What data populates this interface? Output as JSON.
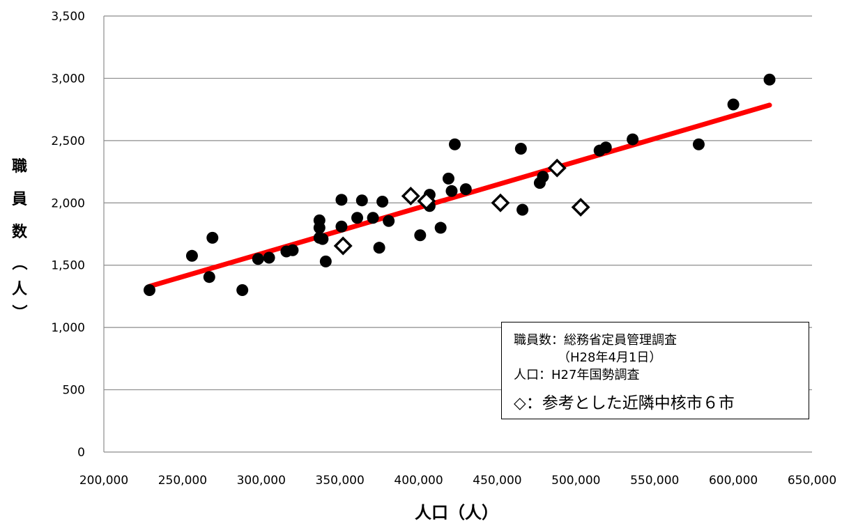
{
  "chart_data": {
    "type": "scatter",
    "title": "",
    "xlabel": "人口（人）",
    "ylabel": [
      "職",
      "員",
      "数",
      "（",
      "人",
      "）"
    ],
    "xlim": [
      200000,
      650000
    ],
    "ylim": [
      0,
      3500
    ],
    "x_ticks": [
      "200,000",
      "250,000",
      "300,000",
      "350,000",
      "400,000",
      "450,000",
      "500,000",
      "550,000",
      "600,000",
      "650,000"
    ],
    "y_ticks": [
      "0",
      "500",
      "1,000",
      "1,500",
      "2,000",
      "2,500",
      "3,000",
      "3,500"
    ],
    "grid": "horizontal",
    "series": [
      {
        "marker": "filled-circle",
        "color": "#000000",
        "points": [
          [
            229000,
            1300
          ],
          [
            256000,
            1575
          ],
          [
            267000,
            1405
          ],
          [
            269000,
            1720
          ],
          [
            288000,
            1300
          ],
          [
            298000,
            1550
          ],
          [
            305000,
            1560
          ],
          [
            316000,
            1610
          ],
          [
            320000,
            1620
          ],
          [
            337000,
            1800
          ],
          [
            337000,
            1860
          ],
          [
            337000,
            1720
          ],
          [
            339000,
            1710
          ],
          [
            341000,
            1530
          ],
          [
            351000,
            2025
          ],
          [
            351000,
            1810
          ],
          [
            361000,
            1880
          ],
          [
            364000,
            2020
          ],
          [
            371000,
            1880
          ],
          [
            375000,
            1640
          ],
          [
            377000,
            2010
          ],
          [
            381000,
            1855
          ],
          [
            401000,
            1740
          ],
          [
            407000,
            2065
          ],
          [
            407000,
            1975
          ],
          [
            414000,
            1800
          ],
          [
            419000,
            2195
          ],
          [
            421000,
            2095
          ],
          [
            423000,
            2470
          ],
          [
            430000,
            2110
          ],
          [
            465000,
            2435
          ],
          [
            466000,
            1945
          ],
          [
            477000,
            2160
          ],
          [
            479000,
            2210
          ],
          [
            515000,
            2420
          ],
          [
            519000,
            2445
          ],
          [
            536000,
            2510
          ],
          [
            578000,
            2470
          ],
          [
            600000,
            2790
          ],
          [
            623000,
            2990
          ]
        ]
      },
      {
        "name": "参考とした近隣中核市６市",
        "marker": "open-diamond",
        "color": "#000000",
        "points": [
          [
            352000,
            1655
          ],
          [
            395000,
            2055
          ],
          [
            405000,
            2015
          ],
          [
            452000,
            2000
          ],
          [
            488000,
            2280
          ],
          [
            503000,
            1965
          ]
        ]
      }
    ],
    "trendline": {
      "color": "#ff0000",
      "from": [
        229000,
        1330
      ],
      "to": [
        623000,
        2785
      ]
    }
  },
  "legend": {
    "line1": "職員数：総務省定員管理調査",
    "line2": "（H28年4月1日）",
    "line3": "人口：H27年国勢調査",
    "line4_symbol": "◇",
    "line4_text": "：参考とした近隣中核市６市"
  }
}
